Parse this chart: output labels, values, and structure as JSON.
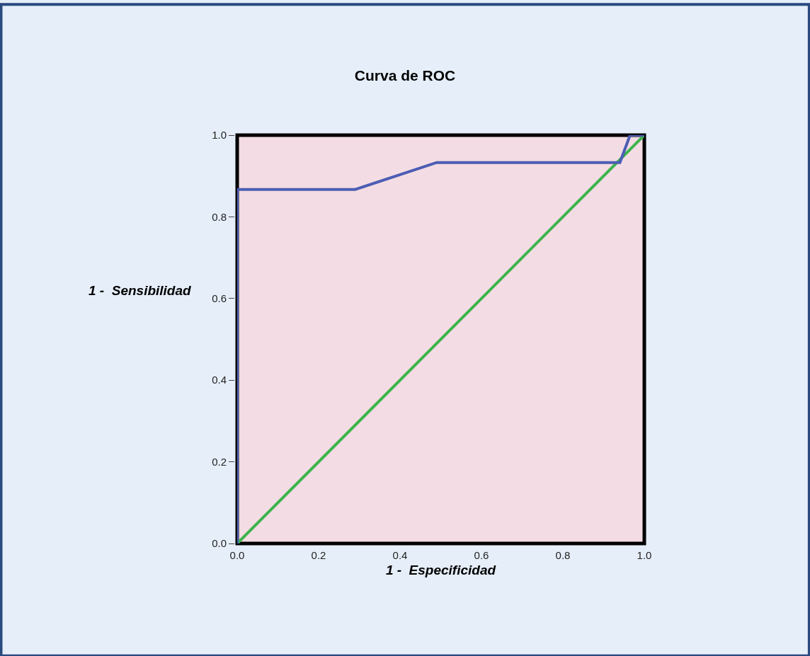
{
  "chart_data": {
    "type": "line",
    "title": "Curva de ROC",
    "xlabel": "1 -  Especificidad",
    "ylabel": "1 -  Sensibilidad",
    "series": [
      {
        "color": "#4b5db4",
        "x": [
          0,
          0,
          0.29,
          0.49,
          0.94,
          0.965,
          1.0
        ],
        "values": [
          0,
          0.867,
          0.867,
          0.933,
          0.933,
          1.0,
          1.0
        ]
      },
      {
        "color": "#3cb44b",
        "x": [
          0,
          1
        ],
        "values": [
          0,
          1
        ]
      }
    ],
    "xlim": [
      0,
      1
    ],
    "ylim": [
      0,
      1
    ],
    "xticks": [
      {
        "value": 0,
        "label": "0.0"
      },
      {
        "value": 0.2,
        "label": "0.2"
      },
      {
        "value": 0.4,
        "label": "0.4"
      },
      {
        "value": 0.6,
        "label": "0.6"
      },
      {
        "value": 0.8,
        "label": "0.8"
      },
      {
        "value": 1,
        "label": "1.0"
      }
    ],
    "yticks": [
      {
        "value": 0,
        "label": "0.0"
      },
      {
        "value": 0.2,
        "label": "0.2"
      },
      {
        "value": 0.4,
        "label": "0.4"
      },
      {
        "value": 0.6,
        "label": "0.6"
      },
      {
        "value": 0.8,
        "label": "0.8"
      },
      {
        "value": 1,
        "label": "1.0"
      }
    ],
    "grid": false,
    "marker": "none",
    "line_style": "solid"
  }
}
